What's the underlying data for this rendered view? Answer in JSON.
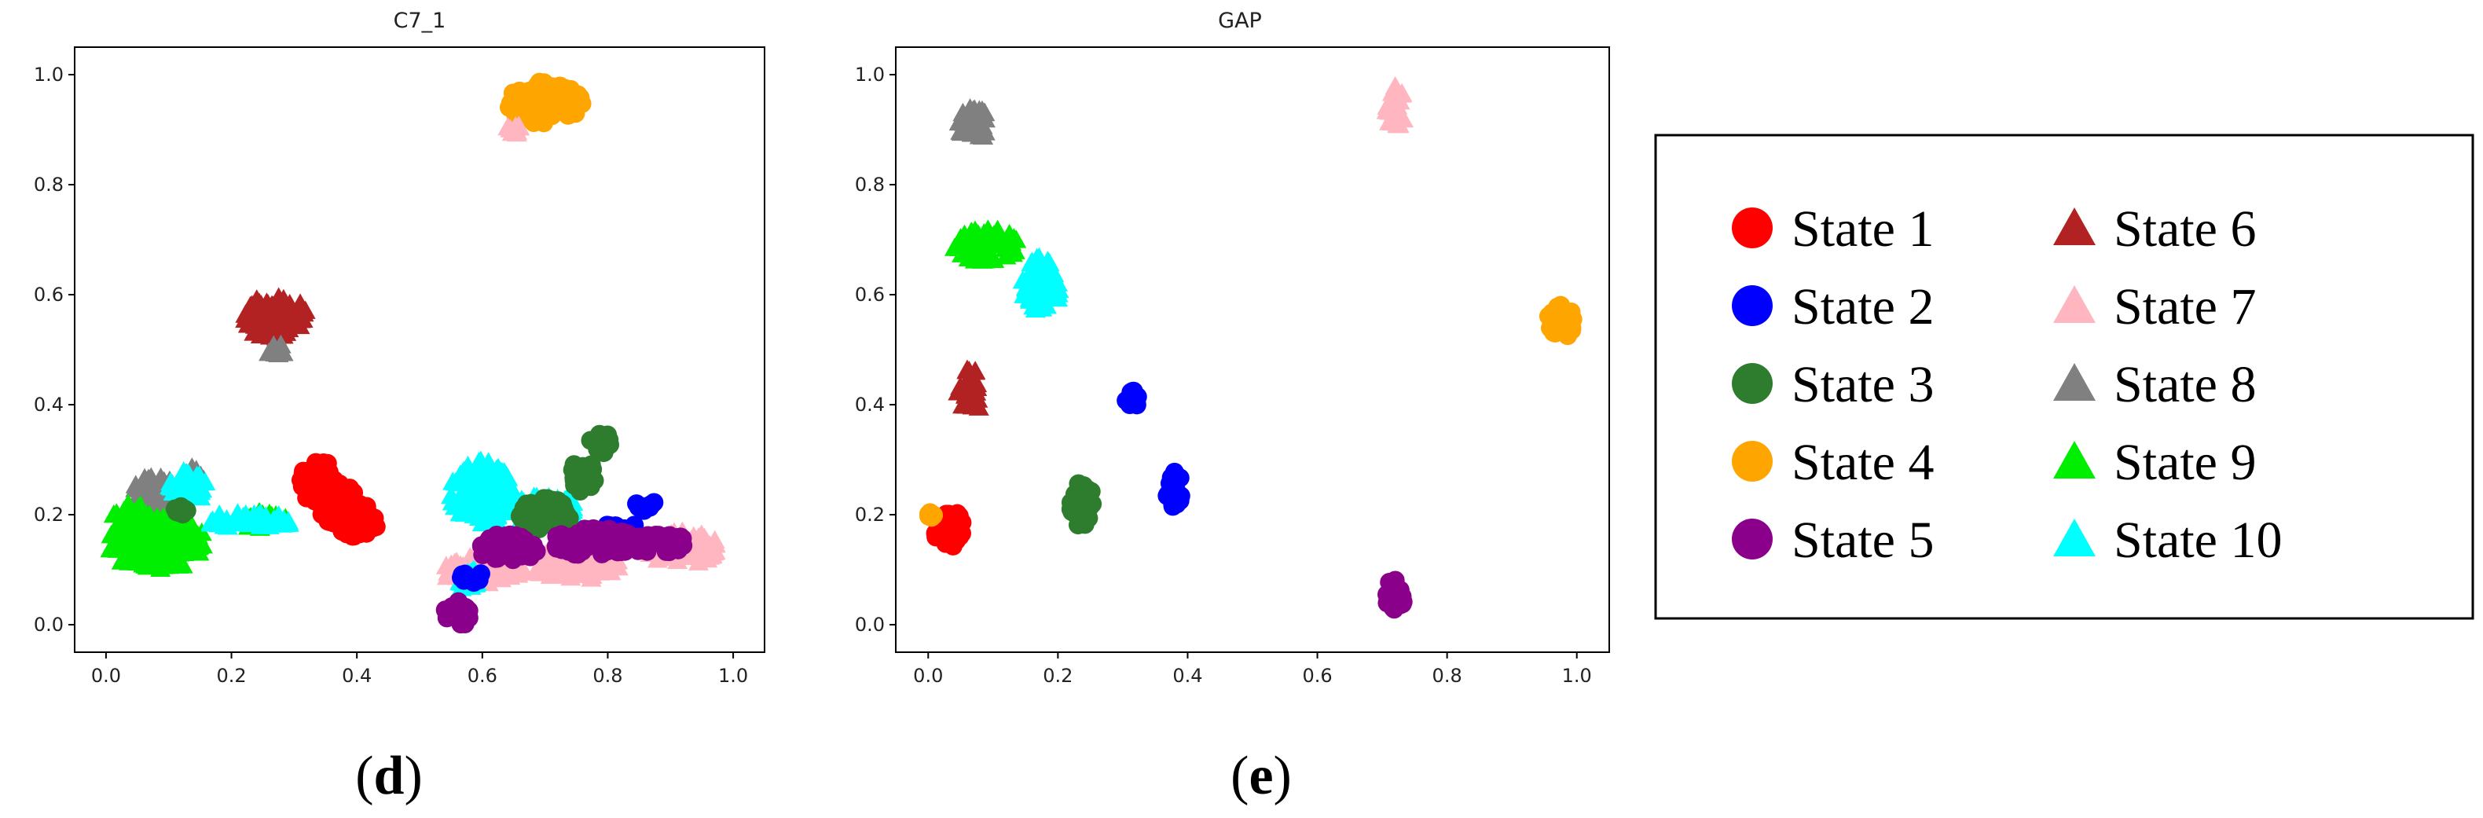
{
  "chart_data": [
    {
      "type": "scatter",
      "title": "C7_1",
      "panel_label": "d",
      "xlim": [
        -0.05,
        1.05
      ],
      "ylim": [
        -0.05,
        1.05
      ],
      "xticks": [
        "0.0",
        "0.2",
        "0.4",
        "0.6",
        "0.8",
        "1.0"
      ],
      "yticks": [
        "0.0",
        "0.2",
        "0.4",
        "0.6",
        "0.8",
        "1.0"
      ],
      "clusters": [
        {
          "state": 1,
          "blobs": [
            [
              0.34,
              0.26,
              0.03,
              0.04
            ],
            [
              0.37,
              0.22,
              0.03,
              0.04
            ],
            [
              0.4,
              0.19,
              0.035,
              0.03
            ]
          ]
        },
        {
          "state": 6,
          "blobs": [
            [
              0.27,
              0.56,
              0.05,
              0.04
            ]
          ]
        },
        {
          "state": 8,
          "blobs": [
            [
              0.27,
              0.5,
              0.015,
              0.012
            ],
            [
              0.08,
              0.24,
              0.04,
              0.03
            ],
            [
              0.14,
              0.27,
              0.02,
              0.02
            ]
          ]
        },
        {
          "state": 4,
          "blobs": [
            [
              0.7,
              0.95,
              0.06,
              0.04
            ]
          ]
        },
        {
          "state": 7,
          "blobs": [
            [
              0.65,
              0.9,
              0.012,
              0.012
            ],
            [
              0.6,
              0.1,
              0.07,
              0.025
            ],
            [
              0.75,
              0.11,
              0.07,
              0.03
            ],
            [
              0.92,
              0.14,
              0.06,
              0.03
            ]
          ]
        },
        {
          "state": 9,
          "blobs": [
            [
              0.08,
              0.15,
              0.08,
              0.05
            ],
            [
              0.04,
              0.19,
              0.03,
              0.03
            ],
            [
              0.25,
              0.19,
              0.04,
              0.015
            ]
          ]
        },
        {
          "state": 10,
          "blobs": [
            [
              0.13,
              0.25,
              0.03,
              0.03
            ],
            [
              0.23,
              0.19,
              0.07,
              0.015
            ],
            [
              0.6,
              0.24,
              0.05,
              0.06
            ],
            [
              0.7,
              0.21,
              0.05,
              0.03
            ],
            [
              0.58,
              0.08,
              0.02,
              0.02
            ]
          ]
        },
        {
          "state": 3,
          "blobs": [
            [
              0.79,
              0.33,
              0.02,
              0.02
            ],
            [
              0.76,
              0.27,
              0.02,
              0.03
            ],
            [
              0.7,
              0.2,
              0.04,
              0.03
            ],
            [
              0.12,
              0.21,
              0.01,
              0.01
            ]
          ]
        },
        {
          "state": 2,
          "blobs": [
            [
              0.86,
              0.22,
              0.015,
              0.015
            ],
            [
              0.82,
              0.17,
              0.03,
              0.02
            ],
            [
              0.58,
              0.09,
              0.02,
              0.015
            ]
          ]
        },
        {
          "state": 5,
          "blobs": [
            [
              0.56,
              0.02,
              0.02,
              0.025
            ],
            [
              0.64,
              0.14,
              0.05,
              0.025
            ],
            [
              0.78,
              0.15,
              0.07,
              0.025
            ],
            [
              0.88,
              0.15,
              0.05,
              0.02
            ]
          ]
        }
      ]
    },
    {
      "type": "scatter",
      "title": "GAP",
      "panel_label": "e",
      "xlim": [
        -0.05,
        1.05
      ],
      "ylim": [
        -0.05,
        1.05
      ],
      "xticks": [
        "0.0",
        "0.2",
        "0.4",
        "0.6",
        "0.8",
        "1.0"
      ],
      "yticks": [
        "0.0",
        "0.2",
        "0.4",
        "0.6",
        "0.8",
        "1.0"
      ],
      "clusters": [
        {
          "state": 1,
          "blobs": [
            [
              0.035,
              0.17,
              0.025,
              0.035
            ]
          ]
        },
        {
          "state": 4,
          "blobs": [
            [
              0.005,
              0.2,
              0.005,
              0.005
            ],
            [
              0.975,
              0.55,
              0.02,
              0.035
            ]
          ]
        },
        {
          "state": 6,
          "blobs": [
            [
              0.065,
              0.425,
              0.02,
              0.04
            ]
          ]
        },
        {
          "state": 8,
          "blobs": [
            [
              0.07,
              0.91,
              0.025,
              0.03
            ]
          ]
        },
        {
          "state": 9,
          "blobs": [
            [
              0.09,
              0.69,
              0.05,
              0.03
            ]
          ]
        },
        {
          "state": 10,
          "blobs": [
            [
              0.175,
              0.62,
              0.03,
              0.05
            ]
          ]
        },
        {
          "state": 3,
          "blobs": [
            [
              0.235,
              0.22,
              0.02,
              0.04
            ]
          ]
        },
        {
          "state": 2,
          "blobs": [
            [
              0.315,
              0.41,
              0.01,
              0.015
            ],
            [
              0.38,
              0.24,
              0.012,
              0.04
            ]
          ]
        },
        {
          "state": 7,
          "blobs": [
            [
              0.72,
              0.94,
              0.015,
              0.04
            ]
          ]
        },
        {
          "state": 5,
          "blobs": [
            [
              0.72,
              0.055,
              0.015,
              0.035
            ]
          ]
        }
      ]
    }
  ],
  "legend": {
    "position": "right",
    "items": [
      {
        "state": 1,
        "label": "State 1",
        "marker": "circle",
        "color": "#ff0000"
      },
      {
        "state": 2,
        "label": "State 2",
        "marker": "circle",
        "color": "#0000ff"
      },
      {
        "state": 3,
        "label": "State 3",
        "marker": "circle",
        "color": "#2e7d2e"
      },
      {
        "state": 4,
        "label": "State 4",
        "marker": "circle",
        "color": "#ffa500"
      },
      {
        "state": 5,
        "label": "State 5",
        "marker": "circle",
        "color": "#8b008b"
      },
      {
        "state": 6,
        "label": "State 6",
        "marker": "triangle",
        "color": "#b22222"
      },
      {
        "state": 7,
        "label": "State 7",
        "marker": "triangle",
        "color": "#ffb6c1"
      },
      {
        "state": 8,
        "label": "State 8",
        "marker": "triangle",
        "color": "#808080"
      },
      {
        "state": 9,
        "label": "State 9",
        "marker": "triangle",
        "color": "#00ee00"
      },
      {
        "state": 10,
        "label": "State 10",
        "marker": "triangle",
        "color": "#00ffff"
      }
    ]
  }
}
